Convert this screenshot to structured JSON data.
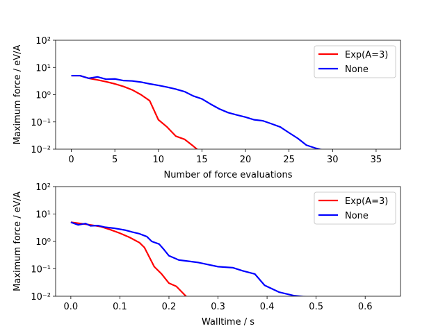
{
  "chart_data": [
    {
      "type": "line",
      "xlabel": "Number of force evaluations",
      "ylabel": "Maximum force / eV/A",
      "xlim": [
        -1.8,
        37.8
      ],
      "xticks": [
        0,
        5,
        10,
        15,
        20,
        25,
        30,
        35
      ],
      "ylim": [
        0.01,
        100
      ],
      "yscale": "log",
      "yticks": [
        {
          "value": 0.01,
          "label": "10⁻²"
        },
        {
          "value": 0.1,
          "label": "10⁻¹"
        },
        {
          "value": 1,
          "label": "10⁰"
        },
        {
          "value": 10,
          "label": "10¹"
        },
        {
          "value": 100,
          "label": "10²"
        }
      ],
      "legend": "upper right",
      "series": [
        {
          "name": "Exp(A=3)",
          "color": "#ff0000",
          "x": [
            0,
            1,
            2,
            3,
            4,
            5,
            6,
            7,
            8,
            9,
            10,
            11,
            12,
            13,
            14,
            15
          ],
          "values": [
            5,
            5,
            4,
            3.5,
            3,
            2.5,
            2,
            1.5,
            1.0,
            0.6,
            0.12,
            0.065,
            0.03,
            0.023,
            0.013,
            0.007
          ]
        },
        {
          "name": "None",
          "color": "#0000ff",
          "x": [
            0,
            1,
            2,
            3,
            4,
            5,
            6,
            7,
            8,
            9,
            10,
            11,
            12,
            13,
            14,
            15,
            16,
            17,
            18,
            19,
            20,
            21,
            22,
            23,
            24,
            25,
            26,
            27,
            28,
            29
          ],
          "values": [
            5,
            5,
            4,
            4.5,
            3.7,
            3.8,
            3.3,
            3.2,
            2.9,
            2.5,
            2.2,
            1.9,
            1.6,
            1.3,
            0.9,
            0.7,
            0.45,
            0.3,
            0.22,
            0.18,
            0.15,
            0.12,
            0.11,
            0.085,
            0.065,
            0.04,
            0.025,
            0.014,
            0.011,
            0.009
          ]
        }
      ]
    },
    {
      "type": "line",
      "xlabel": "Walltime / s",
      "ylabel": "Maximum force / eV/A",
      "xlim": [
        -0.031,
        0.672
      ],
      "xticks": [
        {
          "value": 0,
          "label": "0.0"
        },
        0.1,
        0.2,
        0.3,
        0.4,
        0.5,
        0.6
      ],
      "ylim": [
        0.01,
        100
      ],
      "yscale": "log",
      "yticks": [
        {
          "value": 0.01,
          "label": "10⁻²"
        },
        {
          "value": 0.1,
          "label": "10⁻¹"
        },
        {
          "value": 1,
          "label": "10⁰"
        },
        {
          "value": 10,
          "label": "10¹"
        },
        {
          "value": 100,
          "label": "10²"
        }
      ],
      "legend": "upper right",
      "series": [
        {
          "name": "Exp(A=3)",
          "color": "#ff0000",
          "x": [
            0,
            0.02,
            0.04,
            0.06,
            0.08,
            0.1,
            0.12,
            0.14,
            0.15,
            0.17,
            0.185,
            0.2,
            0.215,
            0.24
          ],
          "values": [
            5,
            4.5,
            4,
            3.5,
            2.7,
            2.0,
            1.4,
            0.9,
            0.6,
            0.12,
            0.065,
            0.03,
            0.023,
            0.008
          ]
        },
        {
          "name": "None",
          "color": "#0000ff",
          "x": [
            0,
            0.015,
            0.03,
            0.04,
            0.055,
            0.07,
            0.09,
            0.11,
            0.125,
            0.14,
            0.155,
            0.165,
            0.18,
            0.19,
            0.2,
            0.22,
            0.26,
            0.3,
            0.33,
            0.35,
            0.375,
            0.395,
            0.425,
            0.455,
            0.49
          ],
          "values": [
            5,
            4,
            4.5,
            3.7,
            3.8,
            3.3,
            3.0,
            2.6,
            2.2,
            1.9,
            1.5,
            1.0,
            0.8,
            0.5,
            0.3,
            0.21,
            0.17,
            0.12,
            0.11,
            0.085,
            0.065,
            0.025,
            0.014,
            0.0105,
            0.009
          ]
        }
      ]
    }
  ]
}
